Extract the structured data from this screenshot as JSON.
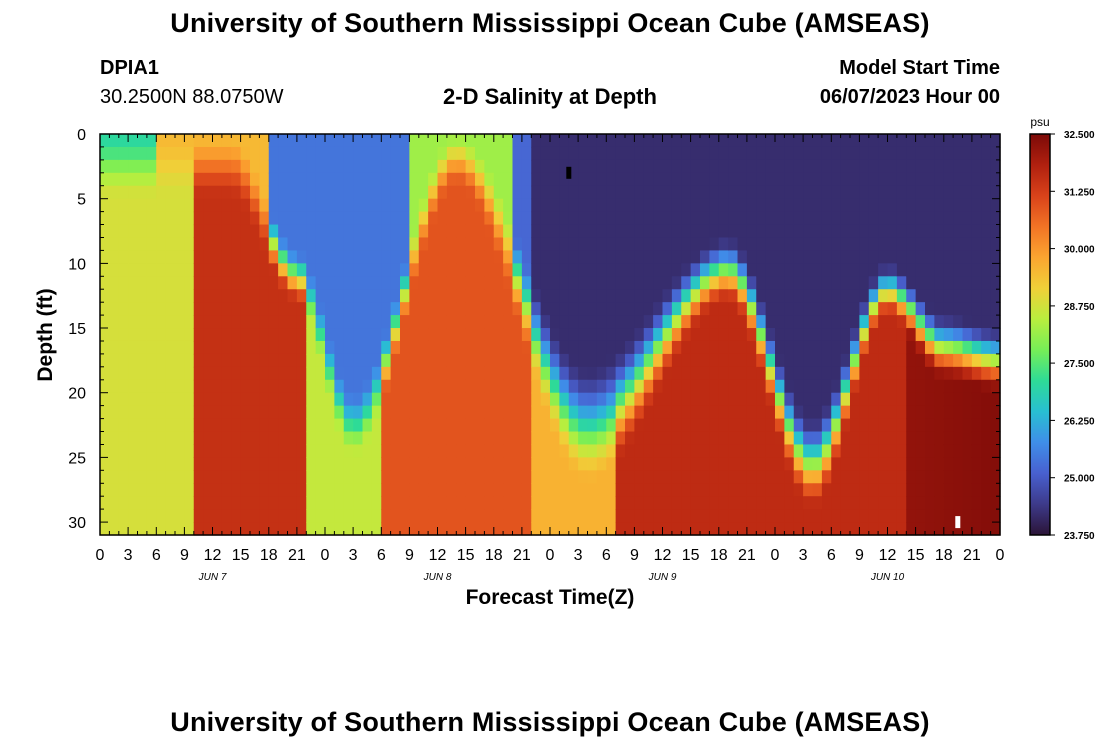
{
  "header": {
    "title": "University of Southern Mississippi Ocean Cube (AMSEAS)",
    "station": "DPIA1",
    "coordinates": "30.2500N  88.0750W",
    "subtitle": "2-D Salinity at Depth",
    "model_start_label": "Model Start Time",
    "model_start_value": "06/07/2023 Hour 00"
  },
  "footer": {
    "title": "University of Southern Mississippi Ocean Cube (AMSEAS)"
  },
  "chart_data": {
    "type": "heatmap",
    "title": "2-D Salinity at Depth",
    "xlabel": "Forecast Time(Z)",
    "ylabel": "Depth (ft)",
    "x_range_hours": [
      0,
      96
    ],
    "x_tick_step_hours": 3,
    "x_tick_labels": [
      "0",
      "3",
      "6",
      "9",
      "12",
      "15",
      "18",
      "21",
      "0",
      "3",
      "6",
      "9",
      "12",
      "15",
      "18",
      "21",
      "0",
      "3",
      "6",
      "9",
      "12",
      "15",
      "18",
      "21",
      "0",
      "3",
      "6",
      "9",
      "12",
      "15",
      "18",
      "21",
      "0"
    ],
    "date_labels": [
      {
        "label": "JUN 7",
        "hour": 12
      },
      {
        "label": "JUN 8",
        "hour": 36
      },
      {
        "label": "JUN 9",
        "hour": 60
      },
      {
        "label": "JUN 10",
        "hour": 84
      }
    ],
    "y_range_ft": [
      0,
      31
    ],
    "y_ticks": [
      "0",
      "5",
      "10",
      "15",
      "20",
      "25",
      "30"
    ],
    "colorbar": {
      "unit": "psu",
      "min": 23.75,
      "max": 32.5,
      "tick_labels": [
        "32.500",
        "31.250",
        "30.000",
        "28.750",
        "27.500",
        "26.250",
        "25.000",
        "23.750"
      ],
      "colors": [
        "#2b1437",
        "#3d3a8a",
        "#4860cf",
        "#3f8ee9",
        "#28bfd2",
        "#2edb97",
        "#76ee57",
        "#b9ee3e",
        "#f0d038",
        "#fba530",
        "#f27325",
        "#d9421a",
        "#b0200f",
        "#7c0a08"
      ]
    },
    "grid": false,
    "description_ridges": [
      {
        "hour": 14,
        "salty_top_ft": 2,
        "fresh_base_ft": 0
      },
      {
        "hour": 21,
        "salty_top_ft": 10,
        "fresh_base_ft": 9
      },
      {
        "hour": 27,
        "salty_top_ft": 22,
        "fresh_base_ft": 20
      },
      {
        "hour": 38,
        "salty_top_ft": 1,
        "fresh_base_ft": 0
      },
      {
        "hour": 52,
        "salty_top_ft": 24,
        "fresh_base_ft": 18
      },
      {
        "hour": 67,
        "salty_top_ft": 10,
        "fresh_base_ft": 8
      },
      {
        "hour": 76,
        "salty_top_ft": 26,
        "fresh_base_ft": 22
      },
      {
        "hour": 84,
        "salty_top_ft": 11,
        "fresh_base_ft": 10
      },
      {
        "hour": 90,
        "salty_top_ft": 16,
        "fresh_base_ft": 14
      },
      {
        "hour": 96,
        "salty_top_ft": 17,
        "fresh_base_ft": 15
      }
    ],
    "markers": [
      {
        "hour": 50,
        "depth_ft": 3,
        "color": "black"
      },
      {
        "hour": 91.5,
        "depth_ft": 30,
        "color": "white"
      }
    ]
  }
}
